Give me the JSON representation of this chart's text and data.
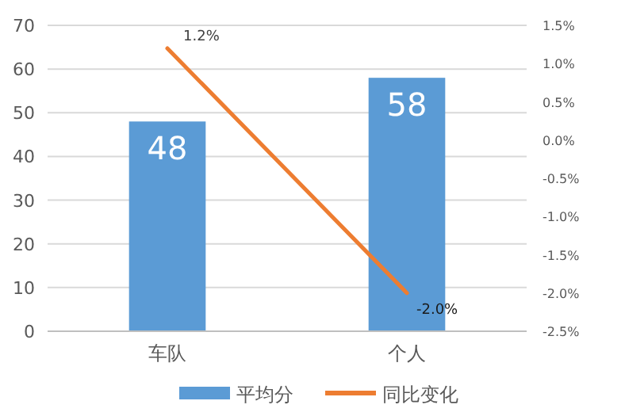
{
  "chart_data": {
    "type": "bar",
    "categories": [
      "车队",
      "个人"
    ],
    "series": [
      {
        "name": "平均分",
        "color": "#5b9bd5",
        "values": [
          48,
          58
        ],
        "value_labels": [
          "48",
          "58"
        ]
      },
      {
        "name": "同比变化",
        "type": "line",
        "axis": "y2",
        "color": "#ed7d31",
        "values": [
          1.2,
          -2.0
        ],
        "value_labels": [
          "1.2%",
          "-2.0%"
        ]
      }
    ],
    "ylim": [
      0,
      70
    ],
    "yticks": [
      0,
      10,
      20,
      30,
      40,
      50,
      60,
      70
    ],
    "y2lim": [
      -2.5,
      1.5
    ],
    "y2ticks": [
      {
        "value": -2.5,
        "label": "-2.5%"
      },
      {
        "value": -2.0,
        "label": "-2.0%"
      },
      {
        "value": -1.5,
        "label": "-1.5%"
      },
      {
        "value": -1.0,
        "label": "-1.0%"
      },
      {
        "value": -0.5,
        "label": "-0.5%"
      },
      {
        "value": 0,
        "label": "0.0%"
      },
      {
        "value": 0.5,
        "label": "0.5%"
      },
      {
        "value": 1.0,
        "label": "1.0%"
      },
      {
        "value": 1.5,
        "label": "1.5%"
      }
    ],
    "grid": "y",
    "legend": "bottom",
    "marker": "none",
    "line_style": "solid"
  }
}
